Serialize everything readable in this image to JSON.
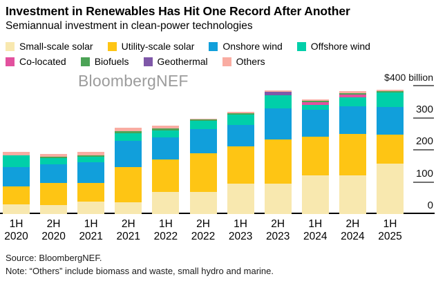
{
  "header": {
    "title": "Investment in Renewables Has Hit One Record After Another",
    "subtitle": "Semiannual investment in clean-power technologies"
  },
  "watermark": "BloombergNEF",
  "colors": {
    "small_scale_solar": "#F8E8AF",
    "utility_scale_solar": "#FEC514",
    "onshore_wind": "#119FDB",
    "offshore_wind": "#00CFA9",
    "co_located": "#E2519E",
    "biofuels": "#4CA356",
    "geothermal": "#7F58A8",
    "others": "#F9ACA2",
    "axis_line": "#000000",
    "tick_line": "#6E6E6E",
    "watermark_gray": "#9C9C9C"
  },
  "y_axis": {
    "ticks": [
      {
        "value": 400,
        "label": "$400 billion"
      },
      {
        "value": 300,
        "label": "300"
      },
      {
        "value": 200,
        "label": "200"
      },
      {
        "value": 100,
        "label": "100"
      },
      {
        "value": 0,
        "label": "0"
      }
    ]
  },
  "chart_data": {
    "type": "bar",
    "stacked": true,
    "title": "Investment in Renewables Has Hit One Record After Another",
    "subtitle": "Semiannual investment in clean-power technologies",
    "unit": "$ billion",
    "ylim": [
      0,
      400
    ],
    "grid": false,
    "legend_position": "top",
    "categories": [
      "1H 2020",
      "2H 2020",
      "1H 2021",
      "2H 2021",
      "1H 2022",
      "2H 2022",
      "1H 2023",
      "2H 2023",
      "1H 2024",
      "2H 2024",
      "1H 2025"
    ],
    "series": [
      {
        "name": "Small-scale solar",
        "key": "small_scale_solar",
        "values": [
          30,
          29,
          39,
          37,
          68,
          68,
          95,
          95,
          120,
          120,
          158
        ]
      },
      {
        "name": "Utility-scale solar",
        "key": "utility_scale_solar",
        "values": [
          55,
          67,
          57,
          110,
          102,
          122,
          116,
          138,
          122,
          129,
          90
        ]
      },
      {
        "name": "Onshore wind",
        "key": "onshore_wind",
        "values": [
          61,
          59,
          65,
          80,
          68,
          75,
          66,
          95,
          83,
          86,
          86
        ]
      },
      {
        "name": "Offshore wind",
        "key": "offshore_wind",
        "values": [
          37,
          19,
          17,
          24,
          22,
          25,
          32,
          42,
          16,
          29,
          45
        ]
      },
      {
        "name": "Co-located",
        "key": "co_located",
        "values": [
          0,
          0,
          0,
          0,
          0,
          0,
          0,
          0,
          7,
          7,
          0
        ]
      },
      {
        "name": "Biofuels",
        "key": "biofuels",
        "values": [
          0,
          4,
          6,
          8,
          7,
          4,
          6,
          0,
          5,
          6,
          4
        ]
      },
      {
        "name": "Geothermal",
        "key": "geothermal",
        "values": [
          0,
          0,
          0,
          0,
          0,
          0,
          0,
          10,
          0,
          0,
          0
        ]
      },
      {
        "name": "Others",
        "key": "others",
        "values": [
          11,
          10,
          9,
          9,
          9,
          3,
          3,
          4,
          4,
          5,
          4
        ]
      }
    ],
    "totals": [
      194,
      188,
      193,
      268,
      276,
      297,
      318,
      384,
      357,
      382,
      387
    ]
  },
  "footer": {
    "source": "Source: BloombergNEF.",
    "note": "Note: “Others” include biomass and waste, small hydro and marine."
  }
}
